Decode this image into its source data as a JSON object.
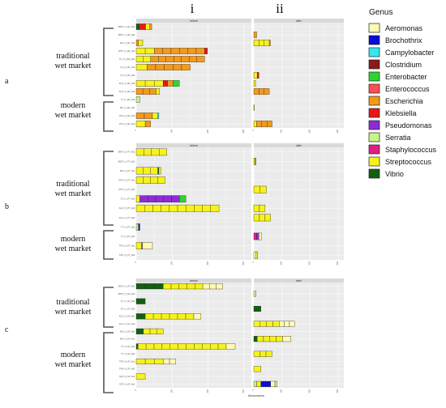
{
  "figure": {
    "column_labels": [
      "i",
      "ii"
    ],
    "panel_labels": [
      "a",
      "b",
      "c"
    ],
    "group_labels": {
      "traditional": [
        "traditional",
        "wet market"
      ],
      "modern": [
        "modern",
        "wet market"
      ]
    },
    "x_axis_label": "Abundance",
    "legend": {
      "title": "Genus",
      "items": [
        {
          "name": "Aeromonas",
          "color": "#fef9b4"
        },
        {
          "name": "Brochothrix",
          "color": "#0b0bd8"
        },
        {
          "name": "Campylobacter",
          "color": "#33e8f0"
        },
        {
          "name": "Clostridium",
          "color": "#8b1a1a"
        },
        {
          "name": "Enterobacter",
          "color": "#2fd52f"
        },
        {
          "name": "Enterococcus",
          "color": "#ff4f4f"
        },
        {
          "name": "Escherichia",
          "color": "#f59a18"
        },
        {
          "name": "Klebsiella",
          "color": "#e81818"
        },
        {
          "name": "Pseudomonas",
          "color": "#8d2cd6"
        },
        {
          "name": "Serratia",
          "color": "#c8f58a"
        },
        {
          "name": "Staphylococcus",
          "color": "#e01c86"
        },
        {
          "name": "Streptococcus",
          "color": "#f7f21c"
        },
        {
          "name": "Vibrio",
          "color": "#145e14"
        }
      ]
    }
  },
  "chart_data": [
    {
      "panel": "a",
      "type": "bar",
      "orientation": "horizontal",
      "stacked": true,
      "facets": [
        "before",
        "after"
      ],
      "x_tick_labels": [
        "0",
        "100",
        "200",
        "300"
      ],
      "xlim": [
        0,
        320
      ],
      "rows": [
        {
          "label": "MWT_O_FR_Ne1",
          "before": [
            [
              "Vibrio",
              8
            ],
            [
              "Klebsiella",
              18
            ],
            [
              "Streptococcus",
              12
            ],
            [
              "Escherichia",
              5
            ]
          ],
          "after": []
        },
        {
          "label": "MWT_O_FR_Ne2",
          "before": [],
          "after": [
            [
              "Escherichia",
              10
            ]
          ]
        },
        {
          "label": "MO_O_FR_Ne1",
          "before": [
            [
              "Escherichia",
              6
            ],
            [
              "Streptococcus",
              12
            ]
          ],
          "after": [
            [
              "Streptococcus",
              55
            ],
            [
              "Escherichia",
              4
            ]
          ]
        },
        {
          "label": "WTP_O_FR_Ne1",
          "before": [
            [
              "Streptococcus",
              50
            ],
            [
              "Escherichia",
              140
            ],
            [
              "Klebsiella",
              8
            ]
          ],
          "after": []
        },
        {
          "label": "KT_O_FR2_Ne1",
          "before": [
            [
              "Streptococcus",
              40
            ],
            [
              "Escherichia",
              150
            ]
          ],
          "after": []
        },
        {
          "label": "KT_O_FR_Ne1",
          "before": [
            [
              "Streptococcus",
              30
            ],
            [
              "Escherichia",
              120
            ]
          ],
          "after": []
        },
        {
          "label": "KT_O_FR_Ne2",
          "before": [],
          "after": [
            [
              "Streptococcus",
              12
            ],
            [
              "Klebsiella",
              6
            ]
          ]
        },
        {
          "label": "KLO_O_FR_Ne1",
          "before": [
            [
              "Streptococcus",
              75
            ],
            [
              "Klebsiella",
              12
            ],
            [
              "Escherichia",
              15
            ],
            [
              "Enterobacter",
              18
            ]
          ],
          "after": [
            [
              "Streptococcus",
              6
            ]
          ]
        },
        {
          "label": "KLO_O_FR_Ne2",
          "before": [
            [
              "Escherichia",
              55
            ],
            [
              "Streptococcus",
              10
            ]
          ],
          "after": [
            [
              "Escherichia",
              55
            ]
          ]
        },
        {
          "label": "TT_N_FR_Ne1",
          "before": [
            [
              "Serratia",
              10
            ]
          ],
          "after": []
        },
        {
          "label": "MC_N_FR_Ne1",
          "before": [],
          "after": [
            [
              "Streptococcus",
              1
            ]
          ]
        },
        {
          "label": "TPH_N_FR_Ne1",
          "before": [
            [
              "Escherichia",
              45
            ],
            [
              "Streptococcus",
              15
            ],
            [
              "Campylobacter",
              3
            ]
          ],
          "after": []
        },
        {
          "label": "TPH_N_FR_Ne2",
          "before": [
            [
              "Streptococcus",
              25
            ],
            [
              "Escherichia",
              15
            ]
          ],
          "after": [
            [
              "Streptococcus",
              10
            ],
            [
              "Escherichia",
              55
            ]
          ]
        }
      ]
    },
    {
      "panel": "b",
      "type": "bar",
      "orientation": "horizontal",
      "stacked": true,
      "facets": [
        "before",
        "after"
      ],
      "x_tick_labels": [
        "0",
        "100",
        "200",
        "300"
      ],
      "xlim": [
        0,
        320
      ],
      "rows": [
        {
          "label": "MWT_O_PT_Ne1",
          "before": [
            [
              "Streptococcus",
              85
            ]
          ],
          "after": []
        },
        {
          "label": "MWT_O_PT_Ne2",
          "before": [],
          "after": [
            [
              "Streptococcus",
              5
            ],
            [
              "Vibrio",
              2
            ]
          ]
        },
        {
          "label": "MO_O_PT_Ne1",
          "before": [
            [
              "Streptococcus",
              60
            ],
            [
              "Vibrio",
              3
            ],
            [
              "Streptococcus",
              5
            ]
          ],
          "after": []
        },
        {
          "label": "WTP_O_PT_Ne1",
          "before": [
            [
              "Streptococcus",
              80
            ]
          ],
          "after": []
        },
        {
          "label": "WTP_O_PT_Ne2",
          "before": [],
          "after": [
            [
              "Streptococcus",
              45
            ]
          ]
        },
        {
          "label": "KT_O_PT_Ne1",
          "before": [
            [
              "Streptococcus",
              10
            ],
            [
              "Pseudomonas",
              110
            ],
            [
              "Enterobacter",
              18
            ]
          ],
          "after": []
        },
        {
          "label": "KLO_O_PT_Ne1",
          "before": [
            [
              "Streptococcus",
              230
            ]
          ],
          "after": [
            [
              "Streptococcus",
              40
            ]
          ]
        },
        {
          "label": "KLO_O_PT_Ne2",
          "before": [],
          "after": [
            [
              "Streptococcus",
              60
            ]
          ]
        },
        {
          "label": "TT_N_PT_Ne1",
          "before": [
            [
              "Serratia",
              6
            ],
            [
              "Brochothrix",
              4
            ]
          ],
          "after": []
        },
        {
          "label": "TT_N_PT_Ne2",
          "before": [],
          "after": [
            [
              "Staphylococcus",
              10
            ],
            [
              "Pseudomonas",
              8
            ],
            [
              "Aeromonas",
              10
            ]
          ]
        },
        {
          "label": "TPH_N_PT_Ne1",
          "before": [
            [
              "Streptococcus",
              15
            ],
            [
              "Brochothrix",
              2
            ],
            [
              "Aeromonas",
              28
            ]
          ],
          "after": []
        },
        {
          "label": "TPH_N_PT_Ne2",
          "before": [],
          "after": [
            [
              "Aeromonas",
              8
            ],
            [
              "Streptococcus",
              6
            ]
          ]
        }
      ]
    },
    {
      "panel": "c",
      "type": "bar",
      "orientation": "horizontal",
      "stacked": true,
      "facets": [
        "before",
        "after"
      ],
      "x_tick_labels": [
        "0",
        "100",
        "200",
        "300"
      ],
      "xlim": [
        0,
        320
      ],
      "rows": [
        {
          "label": "MWT_O_SF_Ne1",
          "before": [
            [
              "Vibrio",
              75
            ],
            [
              "Streptococcus",
              110
            ],
            [
              "Aeromonas",
              55
            ]
          ],
          "after": []
        },
        {
          "label": "MWT_O_SF_Ne2",
          "before": [],
          "after": [
            [
              "Serratia",
              8
            ]
          ]
        },
        {
          "label": "KT_O_SF_Ne1",
          "before": [
            [
              "Vibrio",
              25
            ]
          ],
          "after": []
        },
        {
          "label": "KT_O_SF_Ne2",
          "before": [],
          "after": [
            [
              "Vibrio",
              25
            ]
          ]
        },
        {
          "label": "KLO_O_SF_Ne1",
          "before": [
            [
              "Vibrio",
              25
            ],
            [
              "Streptococcus",
              135
            ],
            [
              "Aeromonas",
              20
            ]
          ],
          "after": []
        },
        {
          "label": "KLO_O_SF_Ne2",
          "before": [],
          "after": [
            [
              "Streptococcus",
              90
            ],
            [
              "Aeromonas",
              55
            ]
          ]
        },
        {
          "label": "MO_N_SF_Ne1",
          "before": [
            [
              "Vibrio",
              20
            ],
            [
              "Streptococcus",
              55
            ]
          ],
          "after": []
        },
        {
          "label": "MO_N_SF_Ne2",
          "before": [],
          "after": [
            [
              "Vibrio",
              12
            ],
            [
              "Streptococcus",
              90
            ],
            [
              "Aeromonas",
              30
            ]
          ]
        },
        {
          "label": "TT_N_SF_Ne1",
          "before": [
            [
              "Vibrio",
              5
            ],
            [
              "Streptococcus",
              245
            ],
            [
              "Aeromonas",
              25
            ]
          ],
          "after": []
        },
        {
          "label": "TT_N_SF_Ne2",
          "before": [],
          "after": [
            [
              "Streptococcus",
              65
            ]
          ]
        },
        {
          "label": "TPH_N_SF_Ne1",
          "before": [
            [
              "Streptococcus",
              75
            ],
            [
              "Aeromonas",
              35
            ]
          ],
          "after": []
        },
        {
          "label": "TPH_N_SF_Ne2",
          "before": [],
          "after": [
            [
              "Streptococcus",
              25
            ]
          ]
        },
        {
          "label": "SDT_N_SF_Ne1",
          "before": [
            [
              "Streptococcus",
              25
            ]
          ],
          "after": []
        },
        {
          "label": "SDT_N_SF_Ne2",
          "before": [],
          "after": [
            [
              "Serratia",
              10
            ],
            [
              "Streptococcus",
              15
            ],
            [
              "Brochothrix",
              35
            ],
            [
              "Aeromonas",
              15
            ],
            [
              "Serratia",
              8
            ]
          ]
        }
      ]
    }
  ]
}
